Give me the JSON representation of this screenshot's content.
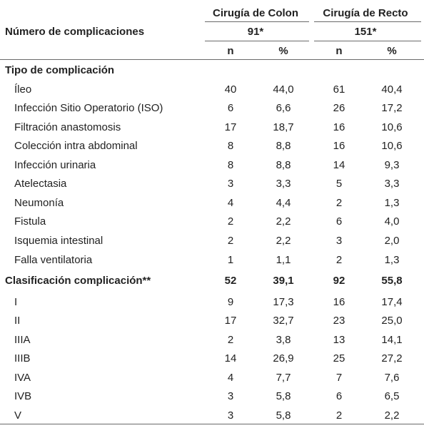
{
  "header": {
    "row_label": "Número de complicaciones",
    "groups": [
      {
        "title": "Cirugía de Colon",
        "total": "91*"
      },
      {
        "title": "Cirugía de Recto",
        "total": "151*"
      }
    ],
    "col_n": "n",
    "col_pct": "%"
  },
  "sections": [
    {
      "title": "Tipo de complicación",
      "values": null,
      "rows": [
        {
          "label": "Íleo",
          "values": [
            "40",
            "44,0",
            "61",
            "40,4"
          ]
        },
        {
          "label": "Infección Sitio Operatorio (ISO)",
          "values": [
            "6",
            "6,6",
            "26",
            "17,2"
          ]
        },
        {
          "label": "Filtración anastomosis",
          "values": [
            "17",
            "18,7",
            "16",
            "10,6"
          ]
        },
        {
          "label": "Colección intra abdominal",
          "values": [
            "8",
            "8,8",
            "16",
            "10,6"
          ]
        },
        {
          "label": "Infección urinaria",
          "values": [
            "8",
            "8,8",
            "14",
            "9,3"
          ]
        },
        {
          "label": "Atelectasia",
          "values": [
            "3",
            "3,3",
            "5",
            "3,3"
          ]
        },
        {
          "label": "Neumonía",
          "values": [
            "4",
            "4,4",
            "2",
            "1,3"
          ]
        },
        {
          "label": "Fistula",
          "values": [
            "2",
            "2,2",
            "6",
            "4,0"
          ]
        },
        {
          "label": "Isquemia intestinal",
          "values": [
            "2",
            "2,2",
            "3",
            "2,0"
          ]
        },
        {
          "label": "Falla ventilatoria",
          "values": [
            "1",
            "1,1",
            "2",
            "1,3"
          ]
        }
      ]
    },
    {
      "title": "Clasificación complicación**",
      "values": [
        "52",
        "39,1",
        "92",
        "55,8"
      ],
      "rows": [
        {
          "label": "I",
          "values": [
            "9",
            "17,3",
            "16",
            "17,4"
          ]
        },
        {
          "label": "II",
          "values": [
            "17",
            "32,7",
            "23",
            "25,0"
          ]
        },
        {
          "label": "IIIA",
          "values": [
            "2",
            "3,8",
            "13",
            "14,1"
          ]
        },
        {
          "label": "IIIB",
          "values": [
            "14",
            "26,9",
            "25",
            "27,2"
          ]
        },
        {
          "label": "IVA",
          "values": [
            "4",
            "7,7",
            "7",
            "7,6"
          ]
        },
        {
          "label": "IVB",
          "values": [
            "3",
            "5,8",
            "6",
            "6,5"
          ]
        },
        {
          "label": "V",
          "values": [
            "3",
            "5,8",
            "2",
            "2,2"
          ]
        }
      ]
    }
  ]
}
